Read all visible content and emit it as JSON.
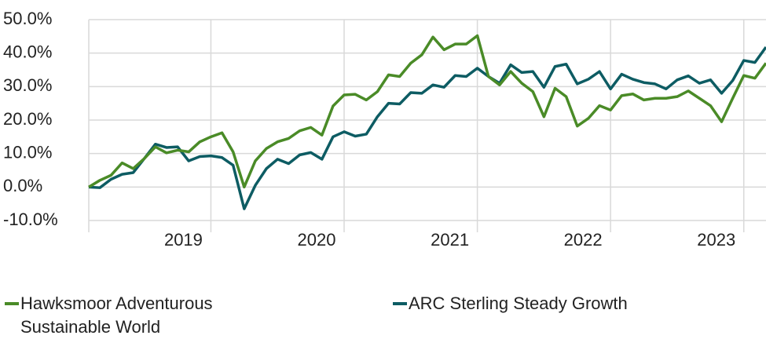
{
  "chart_data": {
    "type": "line",
    "xlim": [
      0,
      61
    ],
    "xticks": [
      {
        "value": 11,
        "label": "2019"
      },
      {
        "value": 23,
        "label": "2020"
      },
      {
        "value": 35,
        "label": "2021"
      },
      {
        "value": 47,
        "label": "2022"
      },
      {
        "value": 59,
        "label": "2023"
      }
    ],
    "ylim": [
      -10,
      50
    ],
    "yticks": [
      {
        "value": -10,
        "label": "-10.0%"
      },
      {
        "value": 0,
        "label": "0.0%"
      },
      {
        "value": 10,
        "label": "10.0%"
      },
      {
        "value": 20,
        "label": "20.0%"
      },
      {
        "value": 30,
        "label": "30.0%"
      },
      {
        "value": 40,
        "label": "40.0%"
      },
      {
        "value": 50,
        "label": "50.0%"
      }
    ],
    "grid": true,
    "x": [
      0,
      1,
      2,
      3,
      4,
      5,
      6,
      7,
      8,
      9,
      10,
      11,
      12,
      13,
      14,
      15,
      16,
      17,
      18,
      19,
      20,
      21,
      22,
      23,
      24,
      25,
      26,
      27,
      28,
      29,
      30,
      31,
      32,
      33,
      34,
      35,
      36,
      37,
      38,
      39,
      40,
      41,
      42,
      43,
      44,
      45,
      46,
      47,
      48,
      49,
      50,
      51,
      52,
      53,
      54,
      55,
      56,
      57,
      58,
      59,
      60,
      61
    ],
    "series": [
      {
        "name": "Hawksmoor Adventurous Sustainable World",
        "color": "#4a8b27",
        "values": [
          0,
          2,
          3.5,
          7.2,
          5.5,
          8.5,
          12,
          10.2,
          11,
          10.5,
          13.5,
          15,
          16.2,
          10.5,
          0,
          7.8,
          11.5,
          13.5,
          14.5,
          16.8,
          17.8,
          15.5,
          24.2,
          27.5,
          27.7,
          26,
          28.5,
          33.5,
          33,
          37,
          39.5,
          44.8,
          41,
          42.7,
          42.7,
          45.2,
          33,
          30.5,
          34.5,
          31,
          28.5,
          21,
          29.5,
          27,
          18.2,
          20.5,
          24.3,
          23,
          27.3,
          27.8,
          26,
          26.5,
          26.5,
          27,
          28.7,
          26.5,
          24.3,
          19.5,
          26.5,
          33.3,
          32.5,
          37
        ]
      },
      {
        "name": "ARC Sterling Steady Growth",
        "color": "#0d5c63",
        "values": [
          0,
          -0.2,
          2.3,
          3.8,
          4.3,
          8.5,
          12.8,
          11.8,
          12,
          7.8,
          9.1,
          9.3,
          8.8,
          6.5,
          -6.5,
          0.5,
          5.5,
          8.3,
          7,
          9.6,
          10.3,
          8.3,
          15,
          16.5,
          15.2,
          15.8,
          21,
          25,
          24.8,
          28.2,
          28,
          30.5,
          29.8,
          33.3,
          33,
          35.5,
          33,
          31,
          36.5,
          34.2,
          34.5,
          29.8,
          36,
          36.7,
          30.8,
          32.2,
          34.5,
          29.3,
          33.7,
          32.2,
          31.2,
          30.8,
          29.3,
          32,
          33.2,
          31,
          32,
          28,
          31.8,
          37.8,
          37.2,
          41.8
        ]
      }
    ]
  }
}
